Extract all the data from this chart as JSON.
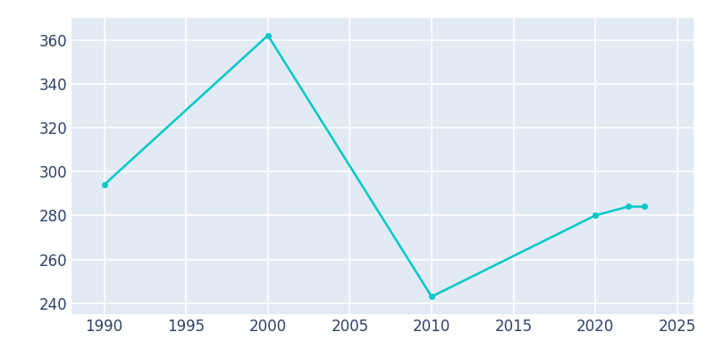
{
  "years": [
    1990,
    2000,
    2010,
    2020,
    2022,
    2023
  ],
  "population": [
    294,
    362,
    243,
    280,
    284,
    284
  ],
  "line_color": "#00C8C8",
  "marker": "o",
  "marker_size": 4,
  "bg_color": "#FFFFFF",
  "plot_bg_color": "#E2EAF4",
  "grid_color": "#FFFFFF",
  "xlim": [
    1988,
    2026
  ],
  "ylim": [
    235,
    370
  ],
  "xticks": [
    1990,
    1995,
    2000,
    2005,
    2010,
    2015,
    2020,
    2025
  ],
  "yticks": [
    240,
    260,
    280,
    300,
    320,
    340,
    360
  ],
  "tick_color": "#2D4268",
  "tick_fontsize": 12
}
